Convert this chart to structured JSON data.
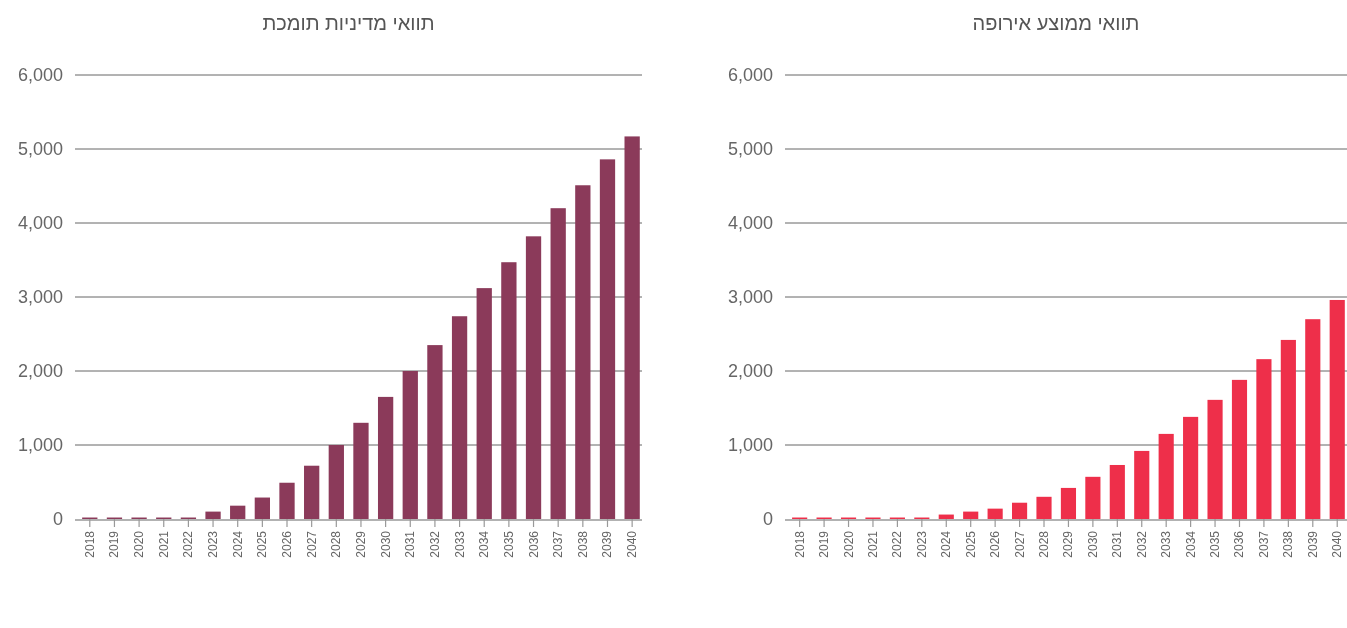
{
  "chart_data": [
    {
      "type": "bar",
      "title": "תוואי מדיניות תומכת",
      "categories": [
        "2018",
        "2019",
        "2020",
        "2021",
        "2022",
        "2023",
        "2024",
        "2025",
        "2026",
        "2027",
        "2028",
        "2029",
        "2030",
        "2031",
        "2032",
        "2033",
        "2034",
        "2035",
        "2036",
        "2037",
        "2038",
        "2039",
        "2040"
      ],
      "values": [
        20,
        20,
        20,
        20,
        20,
        100,
        180,
        290,
        490,
        720,
        1000,
        1300,
        1650,
        2000,
        2350,
        2740,
        3120,
        3470,
        3820,
        4200,
        4510,
        4860,
        5170
      ],
      "color": "#8b3a5a",
      "ylim": [
        0,
        6000
      ],
      "yticks": [
        {
          "value": 0,
          "label": "0"
        },
        {
          "value": 1000,
          "label": "1,000"
        },
        {
          "value": 2000,
          "label": "2,000"
        },
        {
          "value": 3000,
          "label": "3,000"
        },
        {
          "value": 4000,
          "label": "4,000"
        },
        {
          "value": 5000,
          "label": "5,000"
        },
        {
          "value": 6000,
          "label": "6,000"
        }
      ],
      "grid": "y"
    },
    {
      "type": "bar",
      "title": "תוואי ממוצע אירופה",
      "categories": [
        "2018",
        "2019",
        "2020",
        "2021",
        "2022",
        "2023",
        "2024",
        "2025",
        "2026",
        "2027",
        "2028",
        "2029",
        "2030",
        "2031",
        "2032",
        "2033",
        "2034",
        "2035",
        "2036",
        "2037",
        "2038",
        "2039",
        "2040"
      ],
      "values": [
        20,
        20,
        20,
        20,
        20,
        20,
        60,
        100,
        140,
        220,
        300,
        420,
        570,
        730,
        920,
        1150,
        1380,
        1610,
        1880,
        2160,
        2420,
        2700,
        2960
      ],
      "color": "#ee2f4a",
      "ylim": [
        0,
        6000
      ],
      "yticks": [
        {
          "value": 0,
          "label": "0"
        },
        {
          "value": 1000,
          "label": "1,000"
        },
        {
          "value": 2000,
          "label": "2,000"
        },
        {
          "value": 3000,
          "label": "3,000"
        },
        {
          "value": 4000,
          "label": "4,000"
        },
        {
          "value": 5000,
          "label": "5,000"
        },
        {
          "value": 6000,
          "label": "6,000"
        }
      ],
      "grid": "y"
    }
  ]
}
